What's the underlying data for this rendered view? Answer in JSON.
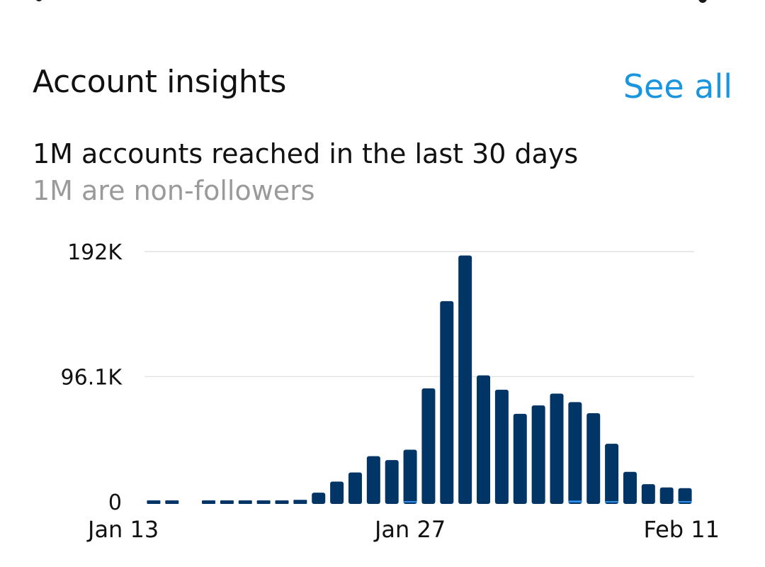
{
  "header": {
    "title": "Account insights",
    "see_all_label": "See all"
  },
  "summary": {
    "reached_text": "1M accounts reached in the last 30 days",
    "non_followers_text": "1M are non-followers"
  },
  "colors": {
    "accent": "#1a95e0",
    "bar": "#003566",
    "bar_secondary": "#2e8ee8",
    "gridline": "#e4e4e4"
  },
  "chart_data": {
    "type": "bar",
    "categories": [
      "Jan 13",
      "Jan 14",
      "Jan 15",
      "Jan 16",
      "Jan 17",
      "Jan 18",
      "Jan 19",
      "Jan 20",
      "Jan 21",
      "Jan 22",
      "Jan 23",
      "Jan 24",
      "Jan 25",
      "Jan 26",
      "Jan 27",
      "Jan 28",
      "Jan 29",
      "Jan 30",
      "Jan 31",
      "Feb 1",
      "Feb 2",
      "Feb 3",
      "Feb 4",
      "Feb 5",
      "Feb 6",
      "Feb 7",
      "Feb 8",
      "Feb 9",
      "Feb 10",
      "Feb 11"
    ],
    "series": [
      {
        "values": [
          600,
          500,
          0,
          500,
          500,
          600,
          600,
          800,
          1500,
          7000,
          15500,
          22500,
          35000,
          32000,
          40000,
          87000,
          154000,
          189000,
          97000,
          86000,
          67500,
          74000,
          83000,
          76500,
          68000,
          44500,
          23000,
          13500,
          11000,
          10500
        ]
      },
      {
        "values": [
          0,
          0,
          0,
          0,
          0,
          0,
          0,
          0,
          0,
          0,
          0,
          0,
          0,
          0,
          500,
          0,
          0,
          0,
          0,
          0,
          0,
          0,
          0,
          1500,
          0,
          500,
          0,
          0,
          0,
          500
        ]
      }
    ],
    "y_ticks": [
      "0",
      "96.1K",
      "192K"
    ],
    "y_tick_values": [
      0,
      96100,
      192000
    ],
    "x_ticks": [
      "Jan 13",
      "Jan 27",
      "Feb 11"
    ],
    "x_tick_index": [
      0,
      14,
      29
    ],
    "ylim": [
      0,
      192000
    ],
    "grid": true,
    "legend": "none"
  }
}
